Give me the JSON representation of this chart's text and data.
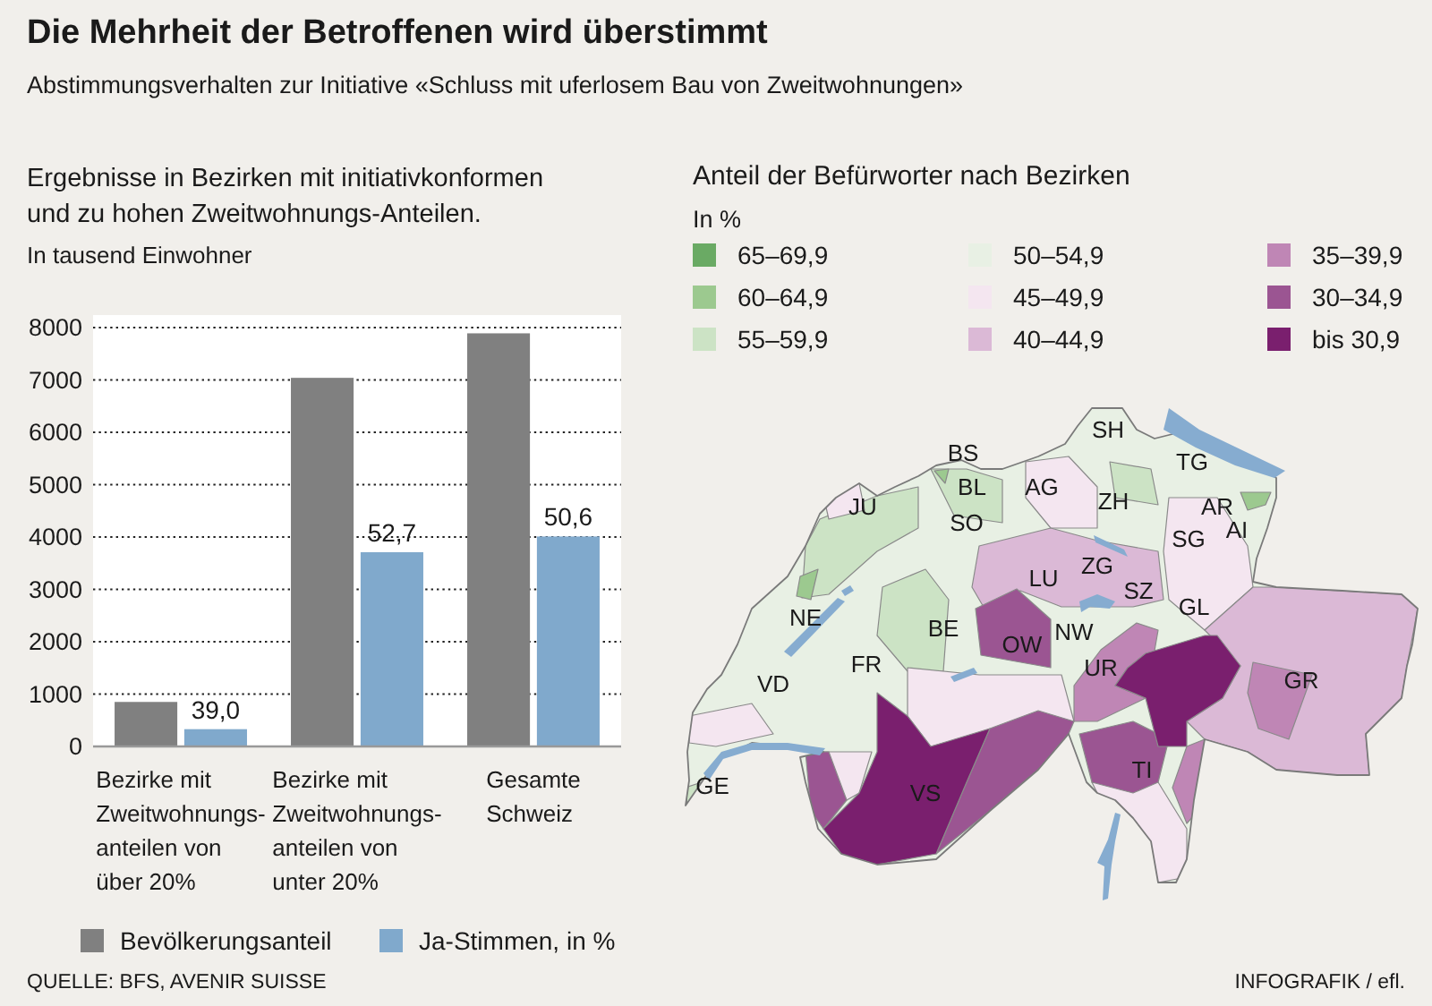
{
  "chart_data": [
    {
      "type": "bar",
      "title": "Die Mehrheit der Betroffenen wird überstimmt",
      "subtitle": "Abstimmungsverhalten zur Initiative «Schluss mit uferlosem Bau von Zweitwohnungen»",
      "ylabel": "In tausend Einwohner",
      "categories": [
        "Bezirke mit\nZweitwohnungs-\nanteilen von\nüber 20%",
        "Bezirke mit\nZweitwohnungs-\nanteilen von\nunter 20%",
        "Gesamte\nSchweiz"
      ],
      "series": [
        {
          "name": "Bevölkerungsanteil",
          "color": "#808080",
          "values": [
            850,
            7040,
            7890
          ]
        },
        {
          "name": "Ja-Stimmen, in %",
          "color": "#80a9cc",
          "values": [
            330,
            3710,
            4010
          ]
        }
      ],
      "ylim": [
        0,
        8000
      ],
      "yticks": [
        0,
        1000,
        2000,
        3000,
        4000,
        5000,
        6000,
        7000,
        8000
      ],
      "grid": "y",
      "legend": "bottom",
      "annotations": [
        "Ergebnisse in Bezirken mit initiativkonformen\nund zu hohen Zweitwohnungs-Anteilen.",
        {
          "text": "39,0",
          "x": "Bezirke mit\nZweitwohnungs-\nanteilen von\nüber 20%",
          "y": 330
        },
        {
          "text": "52,7",
          "x": "Bezirke mit\nZweitwohnungs-\nanteilen von\nunter 20%",
          "y": 3710
        },
        {
          "text": "50,6",
          "x": "Gesamte\nSchweiz",
          "y": 4010
        },
        "QUELLE: BFS, AVENIR SUISSE",
        "INFOGRAFIK / efl."
      ]
    },
    {
      "type": "other",
      "title": "Anteil der Befürworter nach Bezirken",
      "legend_title": "In %",
      "categories": [
        "65–69,9",
        "60–64,9",
        "55–59,9",
        "50–54,9",
        "45–49,9",
        "40–44,9",
        "35–39,9",
        "30–34,9",
        "bis 30,9"
      ],
      "colors": [
        "#6aaa64",
        "#9cc98f",
        "#cce3c5",
        "#e8f0e4",
        "#f4e6f0",
        "#dbb9d6",
        "#bf86b5",
        "#9b5592",
        "#7a1f6e"
      ],
      "annotations": [
        "SH",
        "BS",
        "TG",
        "BL",
        "AG",
        "ZH",
        "AR",
        "JU",
        "SO",
        "AI",
        "SG",
        "ZG",
        "LU",
        "SZ",
        "GL",
        "NE",
        "BE",
        "NW",
        "OW",
        "UR",
        "GR",
        "FR",
        "VD",
        "TI",
        "VS",
        "GE"
      ]
    }
  ]
}
